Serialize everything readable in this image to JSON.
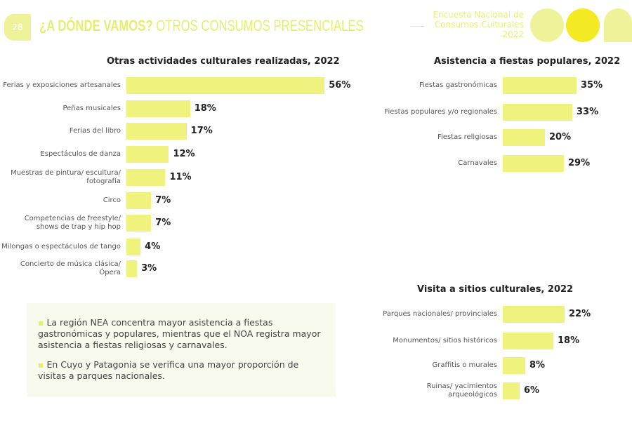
{
  "header": {
    "page_number": "28",
    "title_bold": "¿A DÓNDE VAMOS?",
    "title_rest": " OTROS CONSUMOS PRESENCIALES",
    "survey_lines": [
      "Encuesta Nacional de",
      "Consumos Culturales",
      "2022"
    ]
  },
  "colors": {
    "bar": "#eff37d",
    "accent": "#e6ee70",
    "yellow": "#f3ea23"
  },
  "chart_data": [
    {
      "type": "bar",
      "orientation": "horizontal",
      "title": "Otras actividades culturales realizadas, 2022",
      "categories": [
        "Ferias y exposiciones artesanales",
        "Peñas musicales",
        "Ferias del libro",
        "Espectáculos de danza",
        "Muestras de pintura/ escultura/ fotografía",
        "Circo",
        "Competencias de freestyle/ shows de trap y hip hop",
        "Milongas o espectáculos de tango",
        "Concierto de música clásica/Ópera"
      ],
      "values": [
        56,
        18,
        17,
        12,
        11,
        7,
        7,
        4,
        3
      ],
      "labels": [
        "56%",
        "18%",
        "17%",
        "12%",
        "11%",
        "7%",
        "7%",
        "4%",
        "3%"
      ]
    },
    {
      "type": "bar",
      "orientation": "horizontal",
      "title": "Asistencia a fiestas populares, 2022",
      "categories": [
        "Fiestas gastronómicas",
        "Fiestas populares y/o regionales",
        "Fiestas religiosas",
        "Carnavales"
      ],
      "values": [
        35,
        33,
        20,
        29
      ],
      "labels": [
        "35%",
        "33%",
        "20%",
        "29%"
      ]
    },
    {
      "type": "bar",
      "orientation": "horizontal",
      "title": "Visita a sitios culturales, 2022",
      "categories": [
        "Parques nacionales/ provinciales",
        "Monumentos/ sitios históricos",
        "Graffitis o murales",
        "Ruinas/ yacimientos arqueológicos"
      ],
      "values": [
        22,
        18,
        8,
        6
      ],
      "labels": [
        "22%",
        "18%",
        "8%",
        "6%"
      ]
    }
  ],
  "notes": [
    "La región NEA concentra mayor asistencia a fiestas gastronómicas y populares, mientras que el NOA registra mayor asistencia a fiestas religiosas y carnavales.",
    "En Cuyo y Patagonia se verifica una mayor proporción de visitas a parques nacionales."
  ]
}
